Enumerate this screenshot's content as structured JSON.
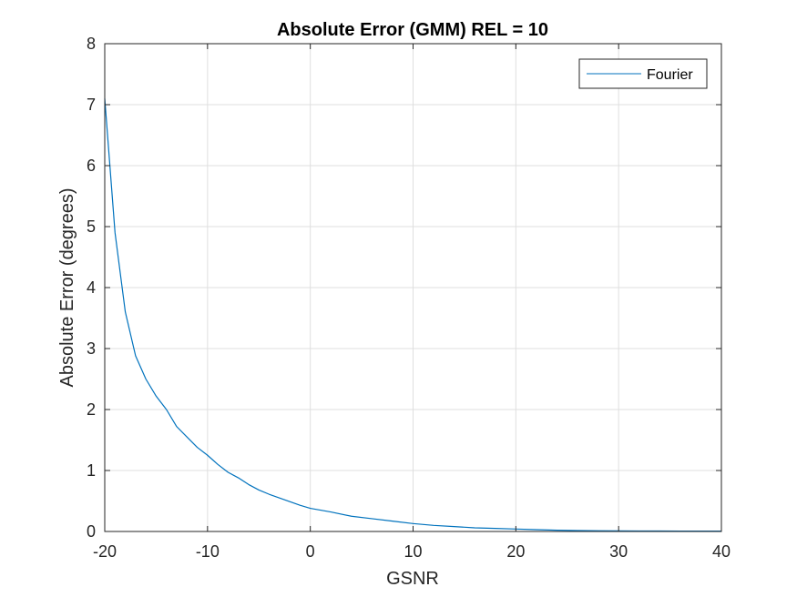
{
  "chart_data": {
    "type": "line",
    "title": "Absolute Error (GMM) REL = 10",
    "xlabel": "GSNR",
    "ylabel": "Absolute Error (degrees)",
    "xlim": [
      -20,
      40
    ],
    "ylim": [
      0,
      8
    ],
    "xticks": [
      "-20",
      "-10",
      "0",
      "10",
      "20",
      "30",
      "40"
    ],
    "yticks": [
      "0",
      "1",
      "2",
      "3",
      "4",
      "5",
      "6",
      "7",
      "8"
    ],
    "grid": true,
    "legend_position": "top-right",
    "colors": {
      "series": "#0072BD",
      "grid": "#DFDFDF",
      "axes": "#262626"
    },
    "series": [
      {
        "name": "Fourier",
        "x": [
          -20,
          -19,
          -18,
          -17,
          -16,
          -15,
          -14,
          -13,
          -12,
          -11,
          -10,
          -9,
          -8,
          -7,
          -6,
          -5,
          -4,
          -3,
          -2,
          -1,
          0,
          2,
          4,
          6,
          8,
          10,
          12,
          14,
          16,
          18,
          20,
          22,
          24,
          26,
          28,
          30,
          32,
          34,
          36,
          38,
          40
        ],
        "y": [
          7.1,
          4.9,
          3.6,
          2.88,
          2.5,
          2.22,
          2.0,
          1.72,
          1.55,
          1.38,
          1.25,
          1.1,
          0.97,
          0.88,
          0.77,
          0.68,
          0.61,
          0.55,
          0.49,
          0.43,
          0.38,
          0.32,
          0.25,
          0.21,
          0.17,
          0.13,
          0.1,
          0.08,
          0.06,
          0.05,
          0.04,
          0.03,
          0.02,
          0.015,
          0.012,
          0.01,
          0.008,
          0.007,
          0.006,
          0.005,
          0.005
        ]
      }
    ]
  }
}
